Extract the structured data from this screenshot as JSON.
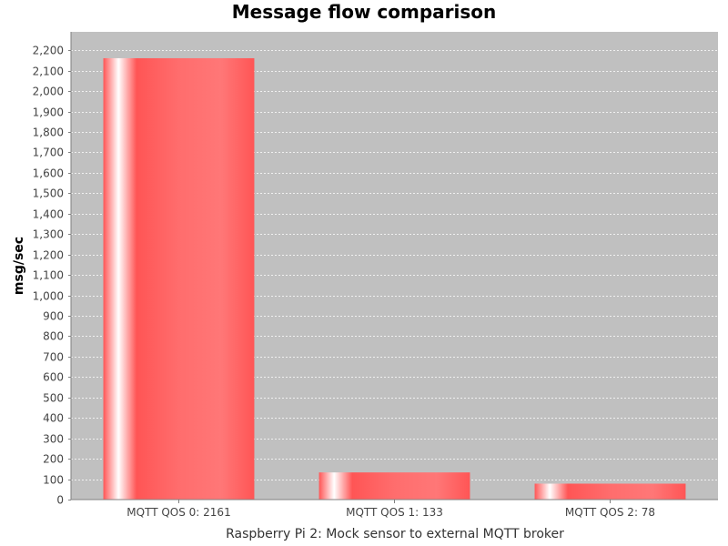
{
  "colors": {
    "plot_bg": "#c0c0c0",
    "bar": "#ff5555",
    "bar_highlight": "#ffffff",
    "grid": "#ffffff"
  },
  "chart_data": {
    "type": "bar",
    "title": "Message flow comparison",
    "xlabel": "Raspberry Pi 2: Mock sensor to external MQTT broker",
    "ylabel": "msg/sec",
    "categories": [
      "MQTT QOS 0: 2161",
      "MQTT QOS 1: 133",
      "MQTT QOS 2: 78"
    ],
    "values": [
      2161,
      133,
      78
    ],
    "ylim": [
      0,
      2290
    ],
    "yticks": [
      0,
      100,
      200,
      300,
      400,
      500,
      600,
      700,
      800,
      900,
      1000,
      1100,
      1200,
      1300,
      1400,
      1500,
      1600,
      1700,
      1800,
      1900,
      2000,
      2100,
      2200
    ],
    "ytick_labels": [
      "0",
      "100",
      "200",
      "300",
      "400",
      "500",
      "600",
      "700",
      "800",
      "900",
      "1,000",
      "1,100",
      "1,200",
      "1,300",
      "1,400",
      "1,500",
      "1,600",
      "1,700",
      "1,800",
      "1,900",
      "2,000",
      "2,100",
      "2,200"
    ],
    "grid": true,
    "legend": "none"
  }
}
